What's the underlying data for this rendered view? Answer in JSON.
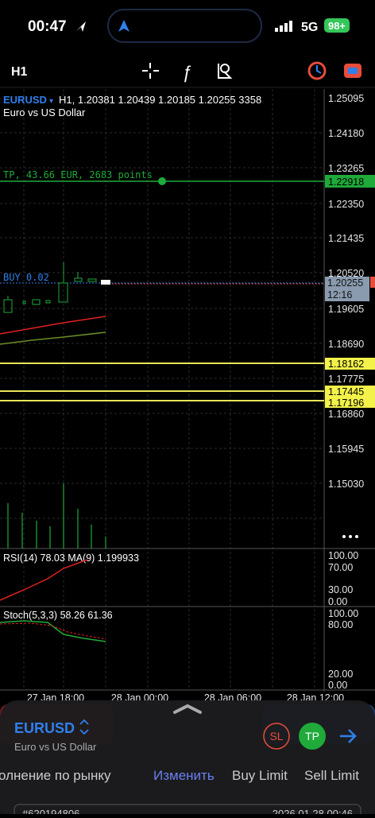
{
  "status": {
    "time": "00:47",
    "network": "5G",
    "battery": "98+"
  },
  "toolbar": {
    "timeframe": "H1"
  },
  "chart": {
    "symbol": "EURUSD",
    "info": "H1, 1.20381 1.20439 1.20185 1.20255 3358",
    "description": "Euro vs US Dollar",
    "price_labels": [
      "1.25095",
      "1.24180",
      "1.23265",
      "1.22350",
      "1.21435",
      "1.20520",
      "1.19605",
      "1.18690",
      "1.17775",
      "1.16860",
      "1.15945",
      "1.15030"
    ],
    "tp_price": "1.22918",
    "tp_label": "TP, 43.66 EUR, 2683 points",
    "buy_label": "BUY 0.02",
    "current_price": "1.20255",
    "countdown": "12:16",
    "level_prices": [
      "1.18162",
      "1.17445",
      "1.17196"
    ],
    "time_labels": [
      "27 Jan 18:00",
      "28 Jan 00:00",
      "28 Jan 06:00",
      "28 Jan 12:00"
    ]
  },
  "rsi": {
    "title": "RSI(14) 78.03 MA(9) 1.199933",
    "scale": [
      "100.00",
      "70.00",
      "30.00",
      "0.00"
    ]
  },
  "stoch": {
    "title": "Stoch(5,3,3) 58.26 61.36",
    "scale": [
      "100.00",
      "80.00",
      "20.00",
      "0.00"
    ]
  },
  "panel": {
    "symbol": "EURUSD",
    "description": "Euro vs US Dollar",
    "sl": "SL",
    "tp": "TP",
    "tabs": [
      "олнение по рынку",
      "Изменить",
      "Buy Limit",
      "Sell Limit"
    ],
    "order_id": "#620194806",
    "order_time": "2026.01.28 00:46"
  }
}
